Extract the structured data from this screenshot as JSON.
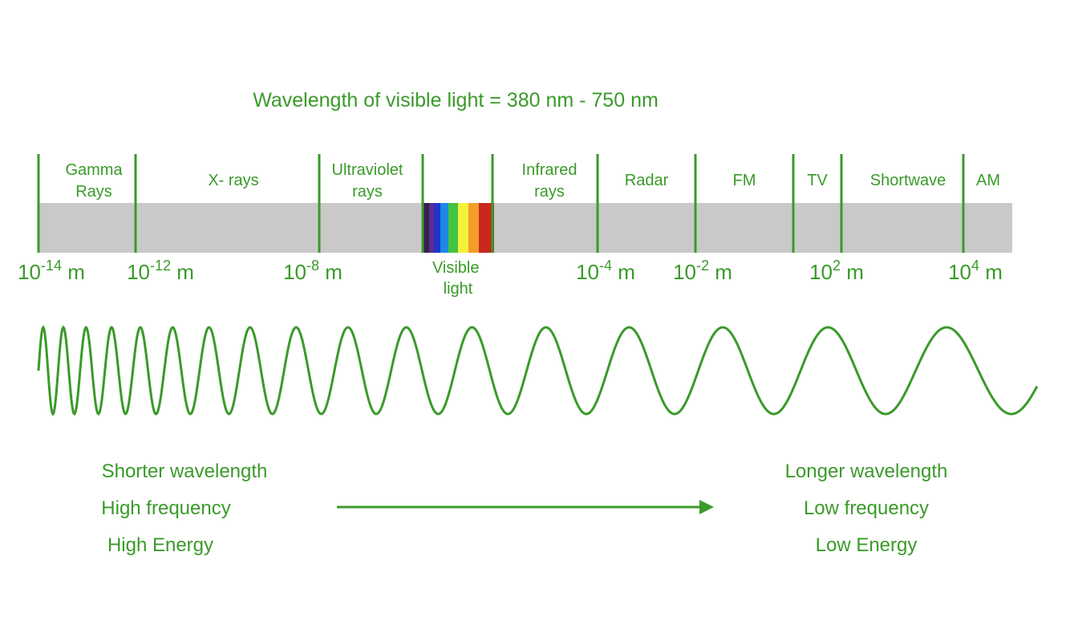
{
  "title": "Wavelength of visible light = 380 nm - 750 nm",
  "colors": {
    "accent": "#3a9a2a",
    "band": "#c9c9c9",
    "spectrum": [
      "#3a1f4f",
      "#5b2d8e",
      "#2233cc",
      "#1e88e5",
      "#43c43f",
      "#f4f13b",
      "#f39c2a",
      "#c8281e"
    ]
  },
  "regions": [
    {
      "id": "gamma",
      "line1": "Gamma",
      "line2": "Rays"
    },
    {
      "id": "xrays",
      "line1": "X- rays",
      "line2": ""
    },
    {
      "id": "ultraviolet",
      "line1": "Ultraviolet",
      "line2": "rays"
    },
    {
      "id": "infrared",
      "line1": "Infrared",
      "line2": "rays"
    },
    {
      "id": "radar",
      "line1": "Radar",
      "line2": ""
    },
    {
      "id": "fm",
      "line1": "FM",
      "line2": ""
    },
    {
      "id": "tv",
      "line1": "TV",
      "line2": ""
    },
    {
      "id": "shortwave",
      "line1": "Shortwave",
      "line2": ""
    },
    {
      "id": "am",
      "line1": "AM",
      "line2": ""
    }
  ],
  "visible_label": {
    "line1": "Visible",
    "line2": "light"
  },
  "scale_ticks": [
    {
      "id": "e-14",
      "base": "10",
      "exp": "-14",
      "unit": "m"
    },
    {
      "id": "e-12",
      "base": "10",
      "exp": "-12",
      "unit": "m"
    },
    {
      "id": "e-8",
      "base": "10",
      "exp": "-8",
      "unit": "m"
    },
    {
      "id": "e-4",
      "base": "10",
      "exp": "-4",
      "unit": "m"
    },
    {
      "id": "e-2",
      "base": "10",
      "exp": "-2",
      "unit": "m"
    },
    {
      "id": "e2",
      "base": "10",
      "exp": "2",
      "unit": "m"
    },
    {
      "id": "e4",
      "base": "10",
      "exp": "4",
      "unit": "m"
    }
  ],
  "left_caption": [
    "Shorter wavelength",
    "High frequency",
    "High Energy"
  ],
  "right_caption": [
    "Longer wavelength",
    "Low frequency",
    "Low Energy"
  ]
}
